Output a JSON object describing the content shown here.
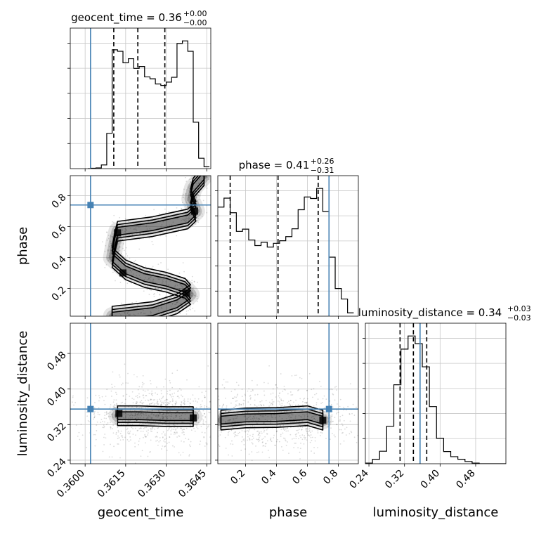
{
  "chart_data": {
    "type": "corner",
    "parameters": [
      "geocent_time",
      "phase",
      "luminosity_distance"
    ],
    "truth": {
      "geocent_time": 0.3602,
      "phase": 0.74,
      "luminosity_distance": 0.355
    },
    "colors": {
      "hist": "#000000",
      "truth": "#4682b4",
      "grid": "#c8c8c8",
      "density": "#000000"
    },
    "grid": true,
    "titles": [
      {
        "param": "geocent_time",
        "prefix": "geocent_time = 0.36",
        "sup": "+0.00",
        "sub": "−0.00"
      },
      {
        "param": "phase",
        "prefix": "phase = 0.41",
        "sup": "+0.26",
        "sub": "−0.31"
      },
      {
        "param": "luminosity_distance",
        "prefix": "luminosity_distance = 0.34",
        "sup": "+0.03",
        "sub": "−0.03"
      }
    ],
    "axis_labels": {
      "x": [
        "geocent_time",
        "phase",
        "luminosity_distance"
      ],
      "y": [
        "phase",
        "luminosity_distance"
      ]
    },
    "ranges": {
      "geocent_time": [
        0.35945,
        0.36465
      ],
      "phase": [
        0.02,
        0.93
      ],
      "luminosity_distance": [
        0.232,
        0.548
      ]
    },
    "ticks": {
      "geocent_time": [
        "0.3600",
        "0.3615",
        "0.3630",
        "0.3645"
      ],
      "phase": [
        "0.2",
        "0.4",
        "0.6",
        "0.8"
      ],
      "luminosity_distance": [
        "0.24",
        "0.32",
        "0.40",
        "0.48"
      ]
    },
    "histograms": {
      "geocent_time": {
        "edges": [
          0.3601,
          0.3602,
          0.3604,
          0.3606,
          0.3608,
          0.361,
          0.3612,
          0.3614,
          0.3616,
          0.3618,
          0.362,
          0.3622,
          0.3624,
          0.3626,
          0.3628,
          0.363,
          0.3632,
          0.3634,
          0.3636,
          0.3638,
          0.364,
          0.3642,
          0.3644,
          0.3646
        ],
        "counts": [
          0,
          1,
          2,
          10,
          95,
          320,
          316,
          285,
          296,
          270,
          275,
          247,
          242,
          228,
          224,
          233,
          246,
          337,
          344,
          316,
          125,
          28,
          5
        ]
      },
      "phase": {
        "edges": [
          0.02,
          0.06,
          0.1,
          0.14,
          0.18,
          0.22,
          0.26,
          0.3,
          0.34,
          0.38,
          0.42,
          0.46,
          0.5,
          0.54,
          0.58,
          0.62,
          0.66,
          0.7,
          0.74,
          0.78,
          0.82,
          0.86,
          0.9
        ],
        "counts": [
          292,
          316,
          277,
          227,
          233,
          204,
          189,
          198,
          185,
          195,
          202,
          213,
          234,
          285,
          319,
          315,
          342,
          280,
          158,
          74,
          46,
          9
        ]
      },
      "luminosity_distance": {
        "edges": [
          0.232,
          0.248,
          0.264,
          0.28,
          0.296,
          0.312,
          0.328,
          0.344,
          0.36,
          0.376,
          0.392,
          0.408,
          0.424,
          0.44,
          0.456,
          0.472,
          0.488,
          0.504,
          0.52,
          0.548
        ],
        "counts": [
          2,
          14,
          39,
          117,
          246,
          357,
          398,
          374,
          302,
          178,
          79,
          38,
          22,
          14,
          7,
          2,
          0,
          0,
          0
        ]
      }
    },
    "quantile_lines": {
      "geocent_time": [
        0.36106,
        0.36195,
        0.36295
      ],
      "phase": [
        0.1,
        0.41,
        0.67
      ],
      "luminosity_distance": [
        0.31,
        0.34,
        0.37
      ]
    },
    "joint_ridges": {
      "phase_vs_geocent_time": [
        [
          0.3644,
          0.93
        ],
        [
          0.364,
          0.85
        ],
        [
          0.3639,
          0.78
        ],
        [
          0.3641,
          0.7
        ],
        [
          0.3638,
          0.65
        ],
        [
          0.3625,
          0.6
        ],
        [
          0.3612,
          0.57
        ],
        [
          0.3611,
          0.5
        ],
        [
          0.361,
          0.4
        ],
        [
          0.3615,
          0.32
        ],
        [
          0.3622,
          0.27
        ],
        [
          0.363,
          0.24
        ],
        [
          0.3637,
          0.2
        ],
        [
          0.3639,
          0.16
        ],
        [
          0.3634,
          0.1
        ],
        [
          0.3625,
          0.05
        ],
        [
          0.361,
          0.02
        ]
      ],
      "luminosity_distance_vs_geocent_time": [
        [
          0.3612,
          0.34
        ],
        [
          0.362,
          0.34
        ],
        [
          0.363,
          0.338
        ],
        [
          0.364,
          0.338
        ]
      ],
      "luminosity_distance_vs_phase": [
        [
          0.04,
          0.33
        ],
        [
          0.2,
          0.335
        ],
        [
          0.4,
          0.336
        ],
        [
          0.6,
          0.34
        ],
        [
          0.7,
          0.33
        ]
      ]
    },
    "density_peaks": {
      "phase_vs_geocent_time": [
        [
          0.36405,
          0.7
        ],
        [
          0.3612,
          0.56
        ],
        [
          0.3614,
          0.3
        ],
        [
          0.36375,
          0.17
        ]
      ],
      "luminosity_distance_vs_geocent_time": [
        [
          0.36125,
          0.345
        ],
        [
          0.364,
          0.335
        ]
      ],
      "luminosity_distance_vs_phase": [
        [
          0.7,
          0.33
        ]
      ]
    }
  }
}
